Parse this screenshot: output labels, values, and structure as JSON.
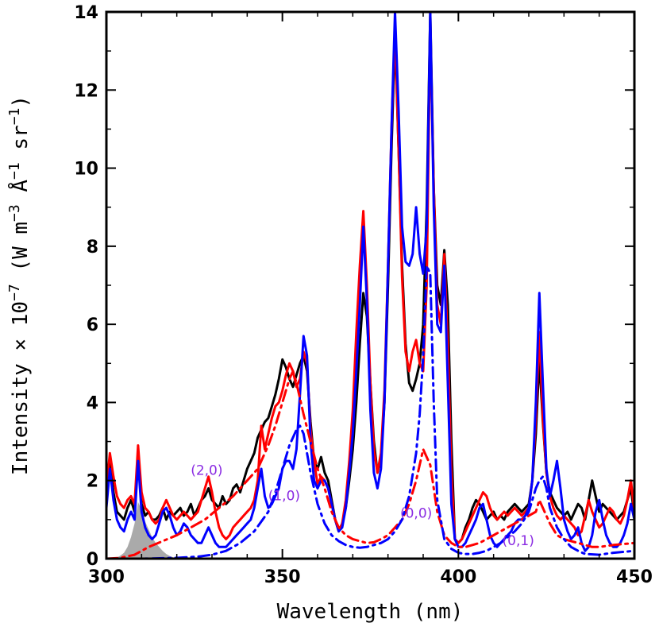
{
  "chart_data": {
    "type": "line",
    "title": "",
    "xlabel": "Wavelength (nm)",
    "ylabel": "Intensity × 10^-7 (W m^-3 Å^-1 sr^-1)",
    "ylabel_parts": {
      "pre": "Intensity × 10",
      "exp1": "−7",
      "mid": " (W m",
      "exp2": "−3",
      "mid2": " Å",
      "exp3": "−1",
      "mid3": " sr",
      "exp4": "−1",
      "post": ")"
    },
    "xlim": [
      300,
      450
    ],
    "ylim": [
      0,
      14
    ],
    "xticks": [
      300,
      350,
      400,
      450
    ],
    "xtick_labels": [
      "300",
      "350",
      "400",
      "450"
    ],
    "yticks": [
      0,
      2,
      4,
      6,
      8,
      10,
      12,
      14
    ],
    "ytick_labels": [
      "0",
      "2",
      "4",
      "6",
      "8",
      "10",
      "12",
      "14"
    ],
    "grid": false,
    "annotations": [
      {
        "text": "(2,0)",
        "x": 328.5,
        "y": 2.15
      },
      {
        "text": "(1,0)",
        "x": 350.5,
        "y": 1.5
      },
      {
        "text": "(0,0)",
        "x": 388,
        "y": 1.05
      },
      {
        "text": "(0,1)",
        "x": 417,
        "y": 0.35
      }
    ],
    "series": [
      {
        "color": "#000000",
        "style": "solid",
        "x": [
          300,
          301,
          302,
          303,
          304,
          305,
          306,
          307,
          308,
          309,
          310,
          311,
          312,
          313,
          314,
          315,
          316,
          317,
          318,
          319,
          320,
          321,
          322,
          323,
          324,
          325,
          326,
          327,
          328,
          329,
          330,
          331,
          332,
          333,
          334,
          335,
          336,
          337,
          338,
          339,
          340,
          341,
          342,
          343,
          344,
          345,
          346,
          347,
          348,
          349,
          350,
          351,
          352,
          353,
          354,
          355,
          356,
          357,
          358,
          359,
          360,
          361,
          362,
          363,
          364,
          365,
          366,
          367,
          368,
          369,
          370,
          371,
          372,
          373,
          374,
          375,
          376,
          377,
          378,
          379,
          380,
          381,
          382,
          383,
          384,
          385,
          386,
          387,
          388,
          389,
          390,
          391,
          392,
          393,
          394,
          395,
          396,
          397,
          398,
          399,
          400,
          401,
          402,
          403,
          404,
          405,
          406,
          407,
          408,
          409,
          410,
          411,
          412,
          413,
          414,
          415,
          416,
          417,
          418,
          419,
          420,
          421,
          422,
          423,
          424,
          425,
          426,
          427,
          428,
          429,
          430,
          431,
          432,
          433,
          434,
          435,
          436,
          437,
          438,
          439,
          440,
          441,
          442,
          443,
          444,
          445,
          446,
          447,
          448,
          449,
          450
        ],
        "y": [
          1.6,
          2.5,
          1.7,
          1.2,
          1.1,
          1.0,
          1.3,
          1.5,
          1.2,
          2.7,
          1.4,
          1.1,
          1.2,
          1.0,
          1.0,
          1.1,
          1.3,
          1.0,
          1.2,
          1.1,
          1.2,
          1.3,
          1.1,
          1.2,
          1.4,
          1.1,
          1.3,
          1.5,
          1.6,
          1.8,
          1.5,
          1.4,
          1.3,
          1.6,
          1.4,
          1.5,
          1.8,
          1.9,
          1.7,
          2.0,
          2.3,
          2.5,
          2.7,
          3.1,
          3.3,
          3.5,
          3.6,
          3.9,
          4.2,
          4.6,
          5.1,
          4.9,
          4.6,
          4.4,
          4.7,
          5.0,
          5.2,
          4.8,
          3.5,
          2.5,
          2.3,
          2.6,
          2.2,
          2.0,
          1.5,
          1.0,
          0.7,
          0.9,
          1.3,
          2.0,
          2.8,
          4.0,
          5.5,
          6.8,
          6.2,
          4.5,
          3.0,
          2.2,
          2.6,
          4.0,
          7.0,
          10.5,
          13.4,
          10.5,
          7.5,
          5.5,
          4.5,
          4.3,
          4.6,
          5.0,
          6.0,
          9.0,
          14.0,
          9.5,
          7.0,
          6.5,
          7.9,
          6.5,
          3.0,
          0.5,
          0.4,
          0.5,
          0.8,
          1.0,
          1.3,
          1.5,
          1.4,
          1.2,
          1.0,
          1.1,
          1.2,
          1.0,
          1.1,
          1.0,
          1.2,
          1.3,
          1.4,
          1.3,
          1.2,
          1.3,
          1.4,
          2.0,
          3.2,
          5.1,
          3.5,
          2.2,
          1.7,
          1.5,
          1.3,
          1.2,
          1.1,
          1.2,
          1.0,
          1.2,
          1.4,
          1.3,
          1.0,
          1.5,
          2.0,
          1.6,
          1.2,
          1.4,
          1.3,
          1.2,
          1.1,
          1.0,
          1.1,
          1.2,
          1.5,
          1.8,
          1.1
        ]
      },
      {
        "color": "#ff0000",
        "style": "solid",
        "x": [
          300,
          301,
          302,
          303,
          304,
          305,
          306,
          307,
          308,
          309,
          310,
          311,
          312,
          313,
          314,
          315,
          316,
          317,
          318,
          319,
          320,
          321,
          322,
          323,
          324,
          325,
          326,
          327,
          328,
          329,
          330,
          331,
          332,
          333,
          334,
          335,
          336,
          337,
          338,
          339,
          340,
          341,
          342,
          343,
          344,
          345,
          346,
          347,
          348,
          349,
          350,
          351,
          352,
          353,
          354,
          355,
          356,
          357,
          358,
          359,
          360,
          361,
          362,
          363,
          364,
          365,
          366,
          367,
          368,
          369,
          370,
          371,
          372,
          373,
          374,
          375,
          376,
          377,
          378,
          379,
          380,
          381,
          382,
          383,
          384,
          385,
          386,
          387,
          388,
          389,
          390,
          391,
          392,
          393,
          394,
          395,
          396,
          397,
          398,
          399,
          400,
          401,
          402,
          403,
          404,
          405,
          406,
          407,
          408,
          409,
          410,
          411,
          412,
          413,
          414,
          415,
          416,
          417,
          418,
          419,
          420,
          421,
          422,
          423,
          424,
          425,
          426,
          427,
          428,
          429,
          430,
          431,
          432,
          433,
          434,
          435,
          436,
          437,
          438,
          439,
          440,
          441,
          442,
          443,
          444,
          445,
          446,
          447,
          448,
          449,
          450
        ],
        "y": [
          1.8,
          2.7,
          2.1,
          1.6,
          1.4,
          1.3,
          1.5,
          1.6,
          1.4,
          2.9,
          1.7,
          1.3,
          1.2,
          1.0,
          0.9,
          1.0,
          1.3,
          1.5,
          1.3,
          1.1,
          1.0,
          1.1,
          1.2,
          1.1,
          1.0,
          1.1,
          1.2,
          1.5,
          1.8,
          2.1,
          1.7,
          1.2,
          0.8,
          0.6,
          0.5,
          0.6,
          0.8,
          0.9,
          1.0,
          1.1,
          1.2,
          1.3,
          1.5,
          2.0,
          3.4,
          2.8,
          3.2,
          3.6,
          3.9,
          4.0,
          4.3,
          4.7,
          5.0,
          4.8,
          4.4,
          4.6,
          5.3,
          5.0,
          3.3,
          2.5,
          1.9,
          2.1,
          2.0,
          1.8,
          1.4,
          1.0,
          0.7,
          0.9,
          1.5,
          2.5,
          3.8,
          5.8,
          7.5,
          8.9,
          7.0,
          4.5,
          2.8,
          2.2,
          2.7,
          4.3,
          7.5,
          11.0,
          13.6,
          10.5,
          7.2,
          5.3,
          4.8,
          5.3,
          5.6,
          5.0,
          4.8,
          7.0,
          13.6,
          9.5,
          6.5,
          6.0,
          7.8,
          5.5,
          2.2,
          0.5,
          0.4,
          0.5,
          0.7,
          0.9,
          1.1,
          1.3,
          1.5,
          1.7,
          1.6,
          1.3,
          1.1,
          1.0,
          1.1,
          1.2,
          1.1,
          1.2,
          1.3,
          1.2,
          1.1,
          1.2,
          1.3,
          2.0,
          3.6,
          5.8,
          3.6,
          2.2,
          1.6,
          1.3,
          1.1,
          1.0,
          1.1,
          1.0,
          0.9,
          0.8,
          0.6,
          0.7,
          1.1,
          1.5,
          1.2,
          1.0,
          0.8,
          0.9,
          1.1,
          1.3,
          1.2,
          1.0,
          0.9,
          1.1,
          1.5,
          2.0,
          1.2
        ]
      },
      {
        "color": "#0000ff",
        "style": "solid",
        "x": [
          300,
          301,
          302,
          303,
          304,
          305,
          306,
          307,
          308,
          309,
          310,
          311,
          312,
          313,
          314,
          315,
          316,
          317,
          318,
          319,
          320,
          321,
          322,
          323,
          324,
          325,
          326,
          327,
          328,
          329,
          330,
          331,
          332,
          333,
          334,
          335,
          336,
          337,
          338,
          339,
          340,
          341,
          342,
          343,
          344,
          345,
          346,
          347,
          348,
          349,
          350,
          351,
          352,
          353,
          354,
          355,
          356,
          357,
          358,
          359,
          360,
          361,
          362,
          363,
          364,
          365,
          366,
          367,
          368,
          369,
          370,
          371,
          372,
          373,
          374,
          375,
          376,
          377,
          378,
          379,
          380,
          381,
          382,
          383,
          384,
          385,
          386,
          387,
          388,
          389,
          390,
          391,
          392,
          393,
          394,
          395,
          396,
          397,
          398,
          399,
          400,
          401,
          402,
          403,
          404,
          405,
          406,
          407,
          408,
          409,
          410,
          411,
          412,
          413,
          414,
          415,
          416,
          417,
          418,
          419,
          420,
          421,
          422,
          423,
          424,
          425,
          426,
          427,
          428,
          429,
          430,
          431,
          432,
          433,
          434,
          435,
          436,
          437,
          438,
          439,
          440,
          441,
          442,
          443,
          444,
          445,
          446,
          447,
          448,
          449,
          450
        ],
        "y": [
          1.3,
          2.3,
          1.5,
          1.0,
          0.8,
          0.7,
          1.0,
          1.2,
          1.0,
          2.5,
          1.2,
          0.8,
          0.6,
          0.5,
          0.6,
          0.9,
          1.2,
          1.3,
          1.1,
          0.8,
          0.6,
          0.7,
          0.9,
          0.8,
          0.6,
          0.5,
          0.4,
          0.4,
          0.6,
          0.8,
          0.6,
          0.4,
          0.3,
          0.3,
          0.3,
          0.4,
          0.5,
          0.6,
          0.7,
          0.8,
          0.9,
          1.0,
          1.3,
          1.8,
          2.3,
          1.6,
          1.3,
          1.4,
          1.6,
          1.8,
          2.3,
          2.5,
          2.5,
          2.3,
          2.8,
          4.2,
          5.7,
          5.2,
          3.0,
          2.0,
          1.8,
          2.0,
          2.0,
          1.8,
          1.4,
          1.0,
          0.7,
          0.8,
          1.3,
          2.2,
          3.2,
          4.8,
          6.5,
          8.5,
          6.6,
          3.8,
          2.2,
          1.8,
          2.3,
          4.0,
          7.5,
          11.0,
          14.0,
          11.5,
          8.5,
          7.6,
          7.5,
          7.8,
          9.0,
          7.8,
          7.3,
          8.5,
          14.0,
          9.0,
          6.0,
          5.8,
          7.5,
          4.5,
          1.4,
          0.5,
          0.3,
          0.3,
          0.4,
          0.6,
          0.8,
          1.0,
          1.3,
          1.4,
          1.0,
          0.6,
          0.4,
          0.3,
          0.4,
          0.5,
          0.6,
          0.7,
          0.9,
          1.0,
          1.0,
          1.1,
          1.3,
          2.0,
          4.0,
          6.8,
          4.5,
          2.3,
          1.6,
          2.0,
          2.5,
          1.8,
          1.0,
          0.7,
          0.5,
          0.6,
          0.8,
          0.4,
          0.2,
          0.3,
          0.6,
          1.2,
          1.5,
          1.0,
          0.6,
          0.4,
          0.3,
          0.3,
          0.4,
          0.6,
          0.9,
          1.4,
          1.0
        ]
      },
      {
        "color": "#ff0000",
        "style": "dashdot",
        "x": [
          300,
          304,
          308,
          312,
          316,
          320,
          324,
          328,
          332,
          336,
          340,
          343,
          346,
          348,
          350,
          352,
          353,
          354,
          356,
          358,
          360,
          362,
          364,
          366,
          368,
          370,
          372,
          374,
          376,
          378,
          380,
          382,
          384,
          386,
          388,
          390,
          392,
          394,
          396,
          398,
          400,
          402,
          404,
          406,
          408,
          410,
          412,
          414,
          416,
          418,
          420,
          422,
          423,
          424,
          426,
          428,
          430,
          432,
          434,
          436,
          438,
          440,
          444,
          450
        ],
        "y": [
          0.0,
          0.02,
          0.1,
          0.3,
          0.45,
          0.6,
          0.8,
          1.0,
          1.3,
          1.6,
          2.0,
          2.3,
          2.9,
          3.4,
          4.0,
          4.6,
          4.8,
          4.5,
          3.7,
          3.0,
          2.3,
          1.8,
          1.2,
          0.8,
          0.6,
          0.5,
          0.45,
          0.4,
          0.42,
          0.5,
          0.6,
          0.8,
          1.0,
          1.4,
          2.0,
          2.8,
          2.4,
          1.2,
          0.6,
          0.4,
          0.3,
          0.3,
          0.35,
          0.4,
          0.5,
          0.6,
          0.7,
          0.8,
          0.9,
          1.0,
          1.1,
          1.2,
          1.5,
          1.3,
          0.9,
          0.6,
          0.5,
          0.45,
          0.4,
          0.35,
          0.3,
          0.3,
          0.35,
          0.4
        ]
      },
      {
        "color": "#0000ff",
        "style": "dashdot",
        "x": [
          300,
          310,
          320,
          326,
          330,
          334,
          338,
          342,
          346,
          348,
          350,
          352,
          354,
          355,
          356,
          357,
          358,
          360,
          362,
          364,
          366,
          368,
          370,
          372,
          374,
          376,
          378,
          380,
          382,
          384,
          386,
          388,
          389,
          390,
          391,
          392,
          393,
          394,
          396,
          398,
          400,
          402,
          404,
          406,
          408,
          410,
          412,
          414,
          416,
          418,
          420,
          421,
          422,
          423,
          424,
          425,
          426,
          428,
          430,
          432,
          434,
          436,
          440,
          444,
          450
        ],
        "y": [
          0.0,
          0.0,
          0.02,
          0.05,
          0.1,
          0.2,
          0.4,
          0.7,
          1.2,
          1.7,
          2.3,
          2.9,
          3.3,
          3.4,
          3.2,
          2.7,
          2.2,
          1.4,
          0.9,
          0.6,
          0.45,
          0.35,
          0.3,
          0.28,
          0.3,
          0.35,
          0.4,
          0.5,
          0.7,
          1.0,
          1.6,
          2.7,
          3.7,
          5.2,
          7.5,
          7.3,
          4.0,
          1.5,
          0.5,
          0.25,
          0.15,
          0.12,
          0.12,
          0.15,
          0.2,
          0.3,
          0.4,
          0.55,
          0.7,
          0.9,
          1.2,
          1.5,
          1.8,
          2.0,
          2.1,
          1.8,
          1.3,
          0.8,
          0.5,
          0.3,
          0.2,
          0.12,
          0.1,
          0.15,
          0.2
        ]
      },
      {
        "color": "#aaaaaa",
        "style": "fill",
        "x": [
          301,
          303,
          304,
          305,
          306,
          307,
          308,
          309,
          310,
          311,
          312,
          313,
          314,
          315,
          316,
          317,
          318,
          320
        ],
        "y": [
          0,
          0.03,
          0.08,
          0.15,
          0.3,
          0.55,
          0.9,
          1.45,
          1.25,
          0.95,
          0.75,
          0.55,
          0.4,
          0.3,
          0.2,
          0.12,
          0.07,
          0
        ]
      }
    ]
  }
}
